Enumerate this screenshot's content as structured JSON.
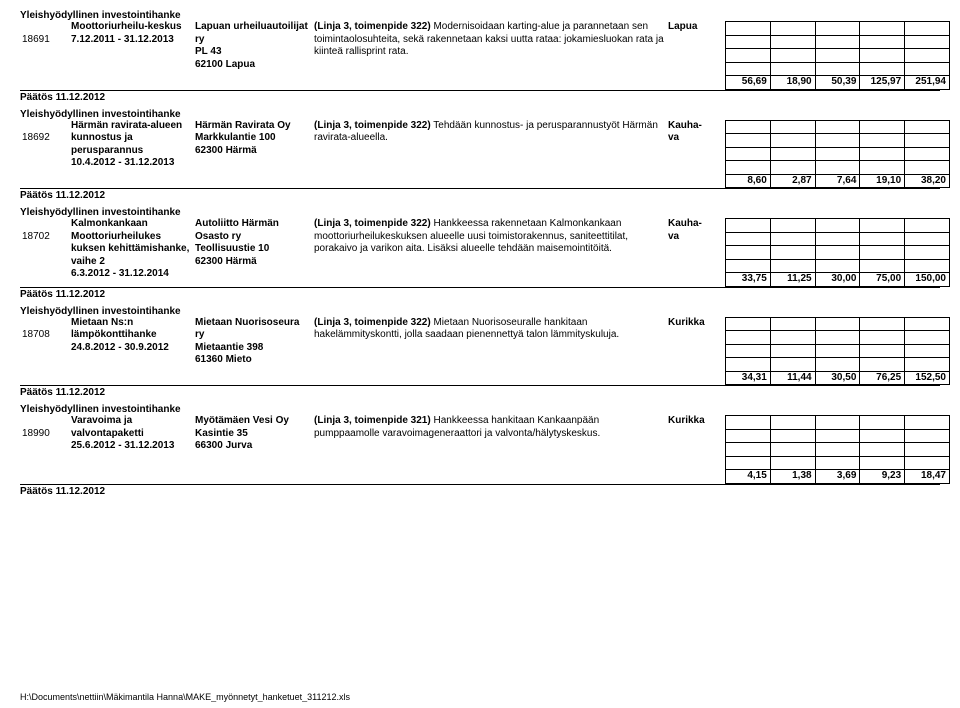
{
  "sections": [
    {
      "title": "Yleishyödyllinen investointihanke",
      "id": "18691",
      "name": "Moottoriurheilu-keskus",
      "dates": "7.12.2011 - 31.12.2013",
      "org_name": "Lapuan urheiluautoilijat ry",
      "org_addr": "PL 43",
      "org_city": "62100 Lapua",
      "desc": "(Linja 3, toimenpide 322) Modernisoidaan karting-alue ja parannetaan sen toimintaolosuhteita, sekä rakennetaan kaksi uutta rataa: jokamiesluokan rata ja kiinteä rallisprint rata.",
      "loc": "Lapua",
      "grid_empty_rows": 4,
      "values": [
        "56,69",
        "18,90",
        "50,39",
        "125,97",
        "251,94"
      ],
      "decision": "Päätös 11.12.2012"
    },
    {
      "title": "Yleishyödyllinen investointihanke",
      "id": "18692",
      "name": "Härmän ravirata-alueen kunnostus ja perusparannus",
      "dates": "10.4.2012 - 31.12.2013",
      "org_name": "Härmän Ravirata Oy",
      "org_addr": "Markkulantie 100",
      "org_city": "62300 Härmä",
      "desc": "(Linja 3, toimenpide 322) Tehdään kunnostus- ja perusparannustyöt Härmän ravirata-alueella.",
      "loc": "Kauha-va",
      "grid_empty_rows": 4,
      "values": [
        "8,60",
        "2,87",
        "7,64",
        "19,10",
        "38,20"
      ],
      "decision": "Päätös 11.12.2012"
    },
    {
      "title": "Yleishyödyllinen investointihanke",
      "id": "18702",
      "name": "Kalmonkankaan Moottoriurheilukes kuksen kehittämishanke, vaihe 2",
      "dates": "6.3.2012 - 31.12.2014",
      "org_name": "Autoliitto Härmän Osasto ry",
      "org_addr": "Teollisuustie 10",
      "org_city": "62300 Härmä",
      "desc": "(Linja 3, toimenpide 322) Hankkeessa rakennetaan Kalmonkankaan moottoriurheilukeskuksen alueelle uusi toimistorakennus, saniteettitilat, porakaivo ja varikon aita. Lisäksi alueelle tehdään maisemointitöitä.",
      "loc": "Kauha-va",
      "grid_empty_rows": 4,
      "values": [
        "33,75",
        "11,25",
        "30,00",
        "75,00",
        "150,00"
      ],
      "decision": "Päätös 11.12.2012"
    },
    {
      "title": "Yleishyödyllinen investointihanke",
      "id": "18708",
      "name": "Mietaan Ns:n lämpökonttihanke",
      "dates": "24.8.2012 - 30.9.2012",
      "org_name": "Mietaan Nuorisoseura ry",
      "org_addr": "Mietaantie 398",
      "org_city": "61360 Mieto",
      "desc": "(Linja 3, toimenpide 322) Mietaan Nuorisoseuralle hankitaan hakelämmityskontti, jolla saadaan pienennettyä talon lämmityskuluja.",
      "loc": "Kurikka",
      "grid_empty_rows": 4,
      "values": [
        "34,31",
        "11,44",
        "30,50",
        "76,25",
        "152,50"
      ],
      "decision": "Päätös 11.12.2012"
    },
    {
      "title": "Yleishyödyllinen investointihanke",
      "id": "18990",
      "name": "Varavoima ja valvontapaketti",
      "dates": "25.6.2012 - 31.12.2013",
      "org_name": "Myötämäen Vesi Oy",
      "org_addr": "Kasintie 35",
      "org_city": "66300 Jurva",
      "desc": "(Linja 3, toimenpide 321) Hankkeessa hankitaan Kankaanpään pumppaamolle varavoimageneraattori ja valvonta/hälytyskeskus.",
      "loc": "Kurikka",
      "grid_empty_rows": 4,
      "values": [
        "4,15",
        "1,38",
        "3,69",
        "9,23",
        "18,47"
      ],
      "decision": "Päätös 11.12.2012"
    }
  ],
  "footer": "H:\\Documents\\nettiin\\Mäkimantila Hanna\\MAKE_myönnetyt_hanketuet_311212.xls"
}
